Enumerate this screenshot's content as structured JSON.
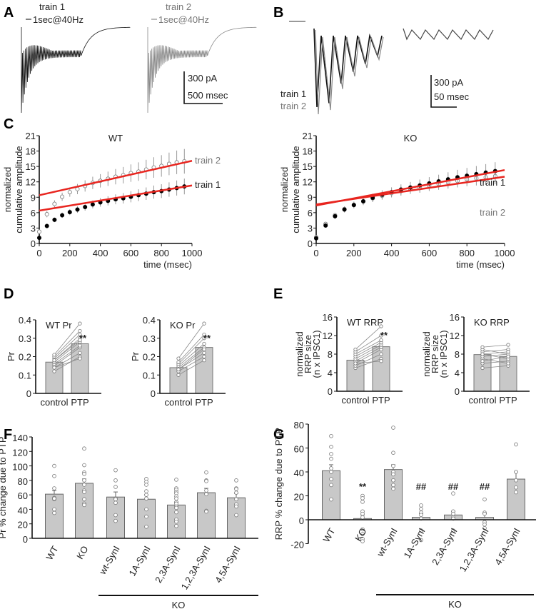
{
  "panels": {
    "A": "A",
    "B": "B",
    "C": "C",
    "D": "D",
    "E": "E",
    "F": "F",
    "G": "G"
  },
  "panel_a": {
    "train1": "train 1",
    "train2": "train 2",
    "stim1": "1sec@40Hz",
    "stim2": "1sec@40Hz",
    "scale_y": "300 pA",
    "scale_x": "500 msec"
  },
  "panel_b": {
    "train1": "train 1",
    "train2": "train 2",
    "scale_y": "300 pA",
    "scale_x": "50 msec"
  },
  "colors": {
    "fit": "#e8251f",
    "train1": "#000000",
    "train2": "#777777",
    "bar": "#c8c8c8"
  },
  "chart_data": [
    {
      "id": "C-WT",
      "type": "scatter",
      "title": "WT",
      "xlabel": "time (msec)",
      "ylabel": [
        "normalized",
        "cumulative amplitude"
      ],
      "xlim": [
        0,
        1000
      ],
      "ylim": [
        0,
        21
      ],
      "xticks": [
        "0",
        "200",
        "400",
        "600",
        "800",
        "1000"
      ],
      "yticks": [
        "0",
        "3",
        "6",
        "9",
        "12",
        "15",
        "18",
        "21"
      ],
      "x": [
        0,
        50,
        100,
        150,
        200,
        250,
        300,
        350,
        400,
        450,
        500,
        550,
        600,
        650,
        700,
        750,
        800,
        850,
        900,
        950
      ],
      "series": [
        {
          "name": "train 1",
          "values": [
            1.1,
            3.4,
            4.6,
            5.5,
            6.1,
            6.6,
            7.1,
            7.6,
            8.0,
            8.3,
            8.6,
            8.8,
            9.1,
            9.4,
            9.7,
            10.0,
            10.2,
            10.5,
            10.8,
            11.1
          ],
          "sem_max": 1.6,
          "fit": [
            6.4,
            11.3
          ]
        },
        {
          "name": "train 2",
          "values": [
            2.3,
            5.7,
            7.7,
            9.1,
            10.0,
            10.6,
            11.2,
            11.8,
            12.2,
            12.6,
            13.0,
            13.3,
            13.7,
            14.0,
            14.4,
            14.8,
            15.1,
            15.5,
            15.8,
            16.0
          ],
          "sem_max": 2.5,
          "fit": [
            9.4,
            16.1
          ]
        }
      ]
    },
    {
      "id": "C-KO",
      "type": "scatter",
      "title": "KO",
      "xlabel": "time (msec)",
      "ylabel": [
        "normalized",
        "cumulative amplitude"
      ],
      "xlim": [
        0,
        1000
      ],
      "ylim": [
        0,
        21
      ],
      "xticks": [
        "0",
        "200",
        "400",
        "600",
        "800",
        "1000"
      ],
      "yticks": [
        "0",
        "3",
        "6",
        "9",
        "12",
        "15",
        "18",
        "21"
      ],
      "x": [
        0,
        50,
        100,
        150,
        200,
        250,
        300,
        350,
        400,
        450,
        500,
        550,
        600,
        650,
        700,
        750,
        800,
        850,
        900,
        950
      ],
      "series": [
        {
          "name": "train 1",
          "values": [
            1.0,
            3.5,
            5.3,
            6.6,
            7.5,
            8.2,
            8.9,
            9.5,
            10.0,
            10.5,
            10.9,
            11.3,
            11.7,
            12.1,
            12.5,
            12.9,
            13.2,
            13.5,
            13.8,
            14.1
          ],
          "sem_max": 1.8,
          "fit": [
            7.4,
            14.3
          ]
        },
        {
          "name": "train 2",
          "values": [
            1.2,
            3.8,
            5.5,
            6.7,
            7.5,
            8.2,
            8.8,
            9.3,
            9.8,
            10.2,
            10.6,
            10.9,
            11.3,
            11.6,
            11.9,
            12.2,
            12.5,
            12.7,
            12.9,
            13.1
          ],
          "sem_max": 1.6,
          "fit": [
            7.6,
            13.0
          ]
        }
      ]
    },
    {
      "id": "D-WT",
      "type": "bar",
      "title": "WT Pr",
      "ylabel": "Pr",
      "categories": [
        "control",
        "PTP"
      ],
      "values": [
        0.17,
        0.27
      ],
      "ylim": [
        0,
        0.4
      ],
      "yticks": [
        "0",
        "0.1",
        "0.2",
        "0.3",
        "0.4"
      ],
      "annotation": "**",
      "pairs": [
        [
          0.12,
          0.2
        ],
        [
          0.14,
          0.22
        ],
        [
          0.15,
          0.25
        ],
        [
          0.16,
          0.26
        ],
        [
          0.17,
          0.28
        ],
        [
          0.18,
          0.3
        ],
        [
          0.19,
          0.32
        ],
        [
          0.2,
          0.34
        ],
        [
          0.21,
          0.38
        ],
        [
          0.14,
          0.19
        ],
        [
          0.18,
          0.29
        ]
      ]
    },
    {
      "id": "D-KO",
      "type": "bar",
      "title": "KO Pr",
      "ylabel": "Pr",
      "categories": [
        "control",
        "PTP"
      ],
      "values": [
        0.14,
        0.25
      ],
      "ylim": [
        0,
        0.4
      ],
      "yticks": [
        "0",
        "0.1",
        "0.2",
        "0.3",
        "0.4"
      ],
      "annotation": "**",
      "pairs": [
        [
          0.1,
          0.18
        ],
        [
          0.12,
          0.2
        ],
        [
          0.13,
          0.22
        ],
        [
          0.14,
          0.25
        ],
        [
          0.15,
          0.27
        ],
        [
          0.16,
          0.3
        ],
        [
          0.17,
          0.32
        ],
        [
          0.19,
          0.38
        ],
        [
          0.13,
          0.24
        ]
      ]
    },
    {
      "id": "E-WT",
      "type": "bar",
      "title": "WT RRP",
      "ylabel": [
        "normalized",
        "RRP size",
        "(n  x  IPSC1)"
      ],
      "categories": [
        "control",
        "PTP"
      ],
      "values": [
        6.7,
        9.6
      ],
      "ylim": [
        0,
        16
      ],
      "yticks": [
        "0",
        "4",
        "8",
        "12",
        "16"
      ],
      "annotation": "**",
      "pairs": [
        [
          5,
          7
        ],
        [
          5.5,
          8
        ],
        [
          6,
          9
        ],
        [
          6.5,
          9.5
        ],
        [
          7,
          10
        ],
        [
          7.5,
          10.5
        ],
        [
          8,
          11
        ],
        [
          8.5,
          12
        ],
        [
          9,
          14
        ],
        [
          6,
          6.5
        ]
      ]
    },
    {
      "id": "E-KO",
      "type": "bar",
      "title": "KO RRP",
      "ylabel": [
        "normalized",
        "RRP size",
        "(n  x  IPSC1)"
      ],
      "categories": [
        "control",
        "PTP"
      ],
      "values": [
        7.9,
        7.5
      ],
      "ylim": [
        0,
        16
      ],
      "yticks": [
        "0",
        "4",
        "8",
        "12",
        "16"
      ],
      "annotation": "",
      "pairs": [
        [
          5,
          5.5
        ],
        [
          6,
          6.5
        ],
        [
          7,
          6
        ],
        [
          7.5,
          8
        ],
        [
          8,
          7
        ],
        [
          8.5,
          9
        ],
        [
          9,
          8
        ],
        [
          9.5,
          10
        ],
        [
          6.5,
          7.5
        ],
        [
          8,
          8.5
        ]
      ]
    },
    {
      "id": "F",
      "type": "bar",
      "ylabel": "Pr % change due to PTP",
      "categories": [
        "WT",
        "KO",
        "wt-SynI",
        "1A-SynI",
        "2,3A-SynI",
        "1,2,3A-SynI",
        "4,5A-SynI"
      ],
      "values": [
        61,
        76,
        57,
        54,
        46,
        63,
        56
      ],
      "sem": [
        5,
        6,
        7,
        6,
        4,
        6,
        6
      ],
      "ylim": [
        0,
        140
      ],
      "yticks": [
        "0",
        "20",
        "40",
        "60",
        "80",
        "100",
        "120",
        "140"
      ],
      "group_label": "KO",
      "points": [
        [
          100,
          86,
          69,
          56,
          55,
          54,
          55,
          40,
          35
        ],
        [
          124,
          101,
          91,
          89,
          80,
          74,
          66,
          64,
          54,
          48,
          46
        ],
        [
          94,
          80,
          71,
          55,
          54,
          49,
          32,
          24
        ],
        [
          82,
          78,
          74,
          65,
          60,
          55,
          40,
          30,
          16
        ],
        [
          81,
          69,
          67,
          64,
          62,
          58,
          55,
          50,
          48,
          44,
          42,
          36,
          26,
          23,
          17
        ],
        [
          91,
          80,
          79,
          66,
          61,
          38,
          37
        ],
        [
          80,
          69,
          68,
          63,
          54,
          47,
          44,
          32
        ]
      ],
      "annotations": [
        "",
        "",
        "",
        "",
        "",
        "",
        ""
      ]
    },
    {
      "id": "G",
      "type": "bar",
      "ylabel": "RRP % change due to PTP",
      "categories": [
        "WT",
        "KO",
        "wt-SynI",
        "1A-SynI",
        "2,3A-SynI",
        "1,2,3A-SynI",
        "4,5A-SynI"
      ],
      "values": [
        41,
        1,
        42,
        2,
        4,
        2,
        34
      ],
      "sem": [
        5,
        3,
        4,
        3,
        3,
        3,
        6
      ],
      "ylim": [
        -20,
        80
      ],
      "yticks": [
        "-20",
        "0",
        "20",
        "40",
        "60",
        "80"
      ],
      "group_label": "KO",
      "points": [
        [
          70,
          61,
          55,
          51,
          43,
          40,
          34,
          29,
          17
        ],
        [
          20,
          18,
          15,
          7,
          5,
          2,
          -8,
          -12,
          -16,
          -18
        ],
        [
          77,
          56,
          45,
          40,
          38,
          33,
          29,
          26
        ],
        [
          12,
          9,
          6,
          4,
          1,
          -9,
          -17
        ],
        [
          22,
          7,
          5,
          2,
          1,
          -9
        ],
        [
          17,
          6,
          5,
          -2,
          -4,
          -7
        ],
        [
          63,
          40,
          33,
          27,
          23
        ]
      ],
      "annotations": [
        "",
        "**",
        "",
        "##",
        "##",
        "##",
        ""
      ]
    }
  ]
}
